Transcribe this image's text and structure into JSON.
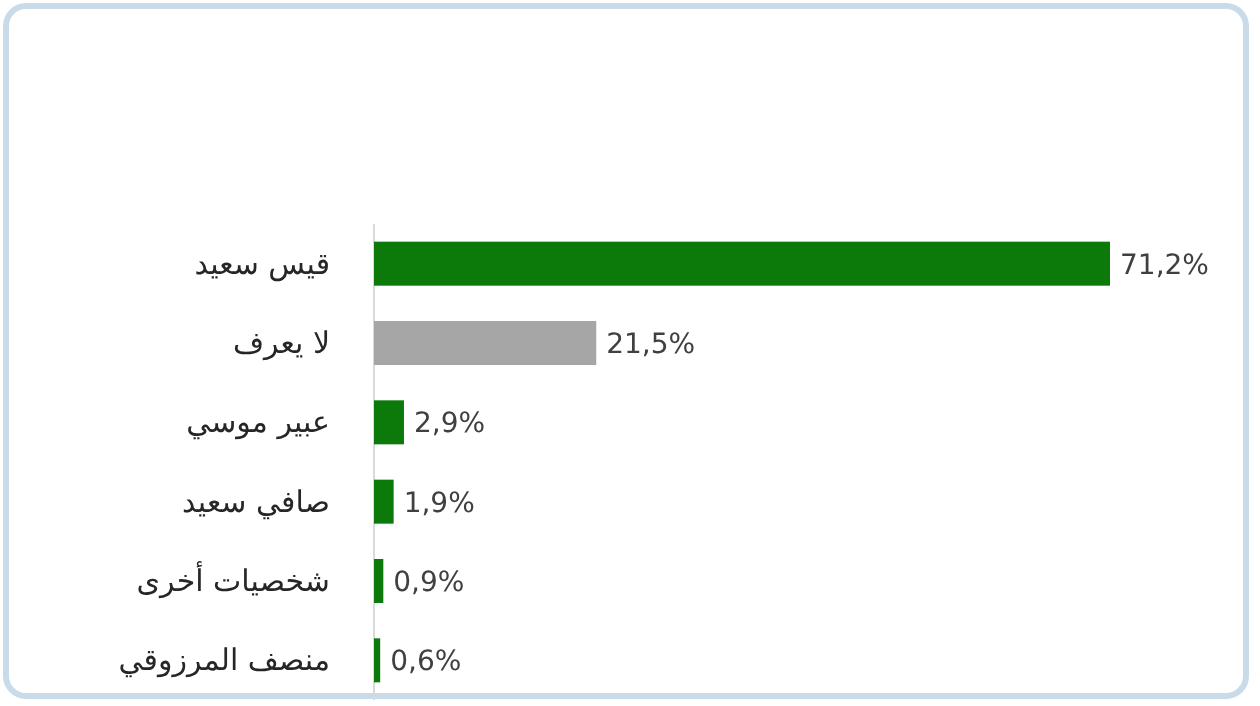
{
  "chart_data": {
    "type": "bar",
    "orientation": "horizontal",
    "categories": [
      "قيس سعيد",
      "لا يعرف",
      "عبير موسي",
      "صافي سعيد",
      "شخصيات أخرى",
      "منصف المرزوقي"
    ],
    "values": [
      71.2,
      21.5,
      2.9,
      1.9,
      0.9,
      0.6
    ],
    "colors": [
      "#0b7a0b",
      "#a6a6a6",
      "#0b7a0b",
      "#0b7a0b",
      "#0b7a0b",
      "#0b7a0b"
    ],
    "value_labels": [
      "71,2%",
      "21,5%",
      "2,9%",
      "1,9%",
      "0,9%",
      "0,6%"
    ]
  }
}
